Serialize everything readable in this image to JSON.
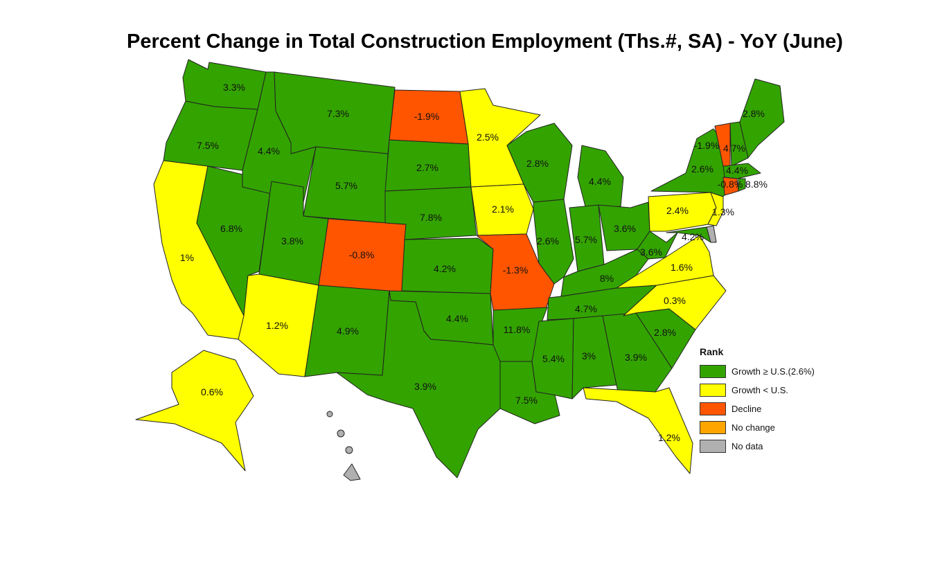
{
  "title": "Percent Change in Total Construction Employment (Ths.#, SA) - YoY (June)",
  "colors": {
    "growth_high": "#33a300",
    "growth_low": "#ffff00",
    "decline": "#ff5500",
    "no_change": "#ffa500",
    "no_data": "#b0b0b0"
  },
  "legend": {
    "title": "Rank",
    "items": [
      {
        "label": "Growth ≥ U.S.(2.6%)",
        "category": "growth_high"
      },
      {
        "label": "Growth < U.S.",
        "category": "growth_low"
      },
      {
        "label": "Decline",
        "category": "decline"
      },
      {
        "label": "No change",
        "category": "no_change"
      },
      {
        "label": "No data",
        "category": "no_data"
      }
    ]
  },
  "chart_data": {
    "type": "choropleth",
    "us_value": "2.6%",
    "states": [
      {
        "state": "WA",
        "value": "3.3%",
        "category": "growth_high"
      },
      {
        "state": "OR",
        "value": "7.5%",
        "category": "growth_high"
      },
      {
        "state": "CA",
        "value": "1%",
        "category": "growth_low"
      },
      {
        "state": "NV",
        "value": "6.8%",
        "category": "growth_high"
      },
      {
        "state": "ID",
        "value": "4.4%",
        "category": "growth_high"
      },
      {
        "state": "MT",
        "value": "7.3%",
        "category": "growth_high"
      },
      {
        "state": "WY",
        "value": "5.7%",
        "category": "growth_high"
      },
      {
        "state": "UT",
        "value": "3.8%",
        "category": "growth_high"
      },
      {
        "state": "AZ",
        "value": "1.2%",
        "category": "growth_low"
      },
      {
        "state": "CO",
        "value": "-0.8%",
        "category": "decline"
      },
      {
        "state": "NM",
        "value": "4.9%",
        "category": "growth_high"
      },
      {
        "state": "ND",
        "value": "-1.9%",
        "category": "decline"
      },
      {
        "state": "SD",
        "value": "2.7%",
        "category": "growth_high"
      },
      {
        "state": "NE",
        "value": "7.8%",
        "category": "growth_high"
      },
      {
        "state": "KS",
        "value": "4.2%",
        "category": "growth_high"
      },
      {
        "state": "OK",
        "value": "4.4%",
        "category": "growth_high"
      },
      {
        "state": "TX",
        "value": "3.9%",
        "category": "growth_high"
      },
      {
        "state": "MN",
        "value": "2.5%",
        "category": "growth_low"
      },
      {
        "state": "IA",
        "value": "2.1%",
        "category": "growth_low"
      },
      {
        "state": "MO",
        "value": "-1.3%",
        "category": "decline"
      },
      {
        "state": "AR",
        "value": "11.8%",
        "category": "growth_high"
      },
      {
        "state": "LA",
        "value": "7.5%",
        "category": "growth_high"
      },
      {
        "state": "WI",
        "value": "2.8%",
        "category": "growth_high"
      },
      {
        "state": "IL",
        "value": "2.6%",
        "category": "growth_high"
      },
      {
        "state": "MI",
        "value": "4.4%",
        "category": "growth_high"
      },
      {
        "state": "IN",
        "value": "5.7%",
        "category": "growth_high"
      },
      {
        "state": "OH",
        "value": "3.6%",
        "category": "growth_high"
      },
      {
        "state": "KY",
        "value": "8%",
        "category": "growth_high"
      },
      {
        "state": "TN",
        "value": "4.7%",
        "category": "growth_high"
      },
      {
        "state": "MS",
        "value": "5.4%",
        "category": "growth_high"
      },
      {
        "state": "AL",
        "value": "3%",
        "category": "growth_high"
      },
      {
        "state": "GA",
        "value": "3.9%",
        "category": "growth_high"
      },
      {
        "state": "FL",
        "value": "1.2%",
        "category": "growth_low"
      },
      {
        "state": "SC",
        "value": "2.8%",
        "category": "growth_high"
      },
      {
        "state": "NC",
        "value": "0.3%",
        "category": "growth_low"
      },
      {
        "state": "VA",
        "value": "1.6%",
        "category": "growth_low"
      },
      {
        "state": "WV",
        "value": "3.6%",
        "category": "growth_high"
      },
      {
        "state": "MD",
        "value": "4.2%",
        "category": "growth_high"
      },
      {
        "state": "DE",
        "value": "",
        "category": "no_data"
      },
      {
        "state": "PA",
        "value": "2.4%",
        "category": "growth_low"
      },
      {
        "state": "NJ",
        "value": "1.3%",
        "category": "growth_low"
      },
      {
        "state": "NY",
        "value": "2.6%",
        "category": "growth_high"
      },
      {
        "state": "VT",
        "value": "-1.9%",
        "category": "decline"
      },
      {
        "state": "NH",
        "value": "4.7%",
        "category": "growth_high"
      },
      {
        "state": "ME",
        "value": "2.8%",
        "category": "growth_high"
      },
      {
        "state": "MA",
        "value": "4.4%",
        "category": "growth_high"
      },
      {
        "state": "CT",
        "value": "-0.8%",
        "category": "decline"
      },
      {
        "state": "RI",
        "value": "8.8%",
        "category": "growth_high"
      },
      {
        "state": "AK",
        "value": "0.6%",
        "category": "growth_low"
      },
      {
        "state": "HI",
        "value": "",
        "category": "no_data"
      }
    ]
  }
}
